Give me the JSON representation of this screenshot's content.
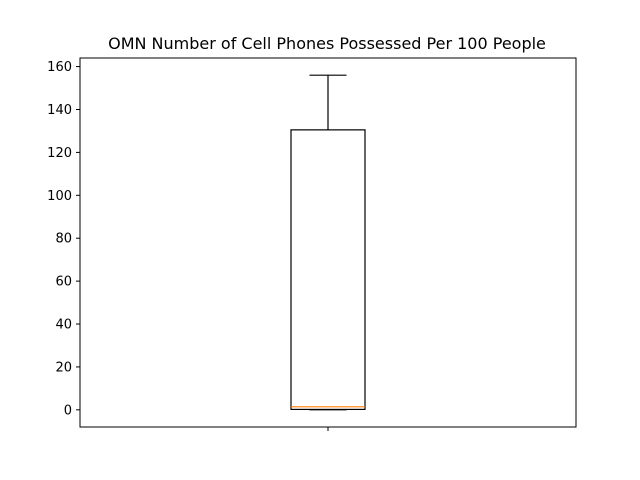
{
  "chart_data": {
    "type": "box",
    "title": "OMN Number of Cell Phones Possessed Per 100 People",
    "xlabel": "",
    "ylabel": "",
    "ylim": [
      -8,
      164
    ],
    "yticks": [
      0,
      20,
      40,
      60,
      80,
      100,
      120,
      140,
      160
    ],
    "grid": false,
    "box": {
      "whisker_low": 0,
      "q1": 0.2,
      "median": 1.4,
      "q3": 130.5,
      "whisker_high": 156
    },
    "colors": {
      "box": "#000000",
      "median": "#ff7f0e"
    }
  }
}
